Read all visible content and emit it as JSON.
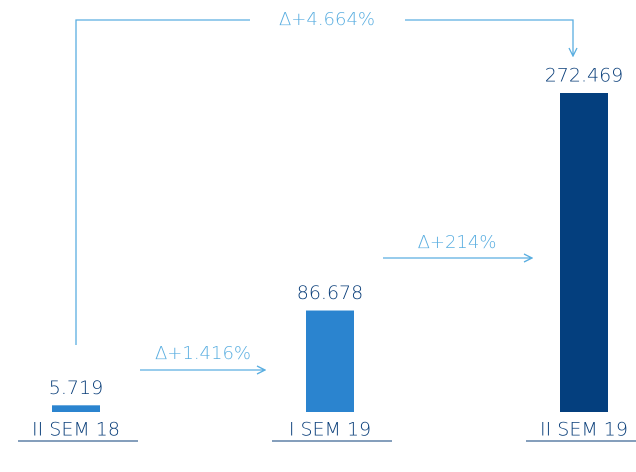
{
  "chart_data": {
    "type": "bar",
    "categories": [
      "II SEM 18",
      "I SEM 19",
      "II SEM 19"
    ],
    "values": [
      5719,
      86678,
      272469
    ],
    "value_labels": [
      "5.719",
      "86.678",
      "272.469"
    ],
    "colors": [
      "#2b84cf",
      "#2b84cf",
      "#043f7e"
    ],
    "annotations": [
      "Δ+4.664%",
      "Δ+1.416%",
      "Δ+214%"
    ]
  }
}
